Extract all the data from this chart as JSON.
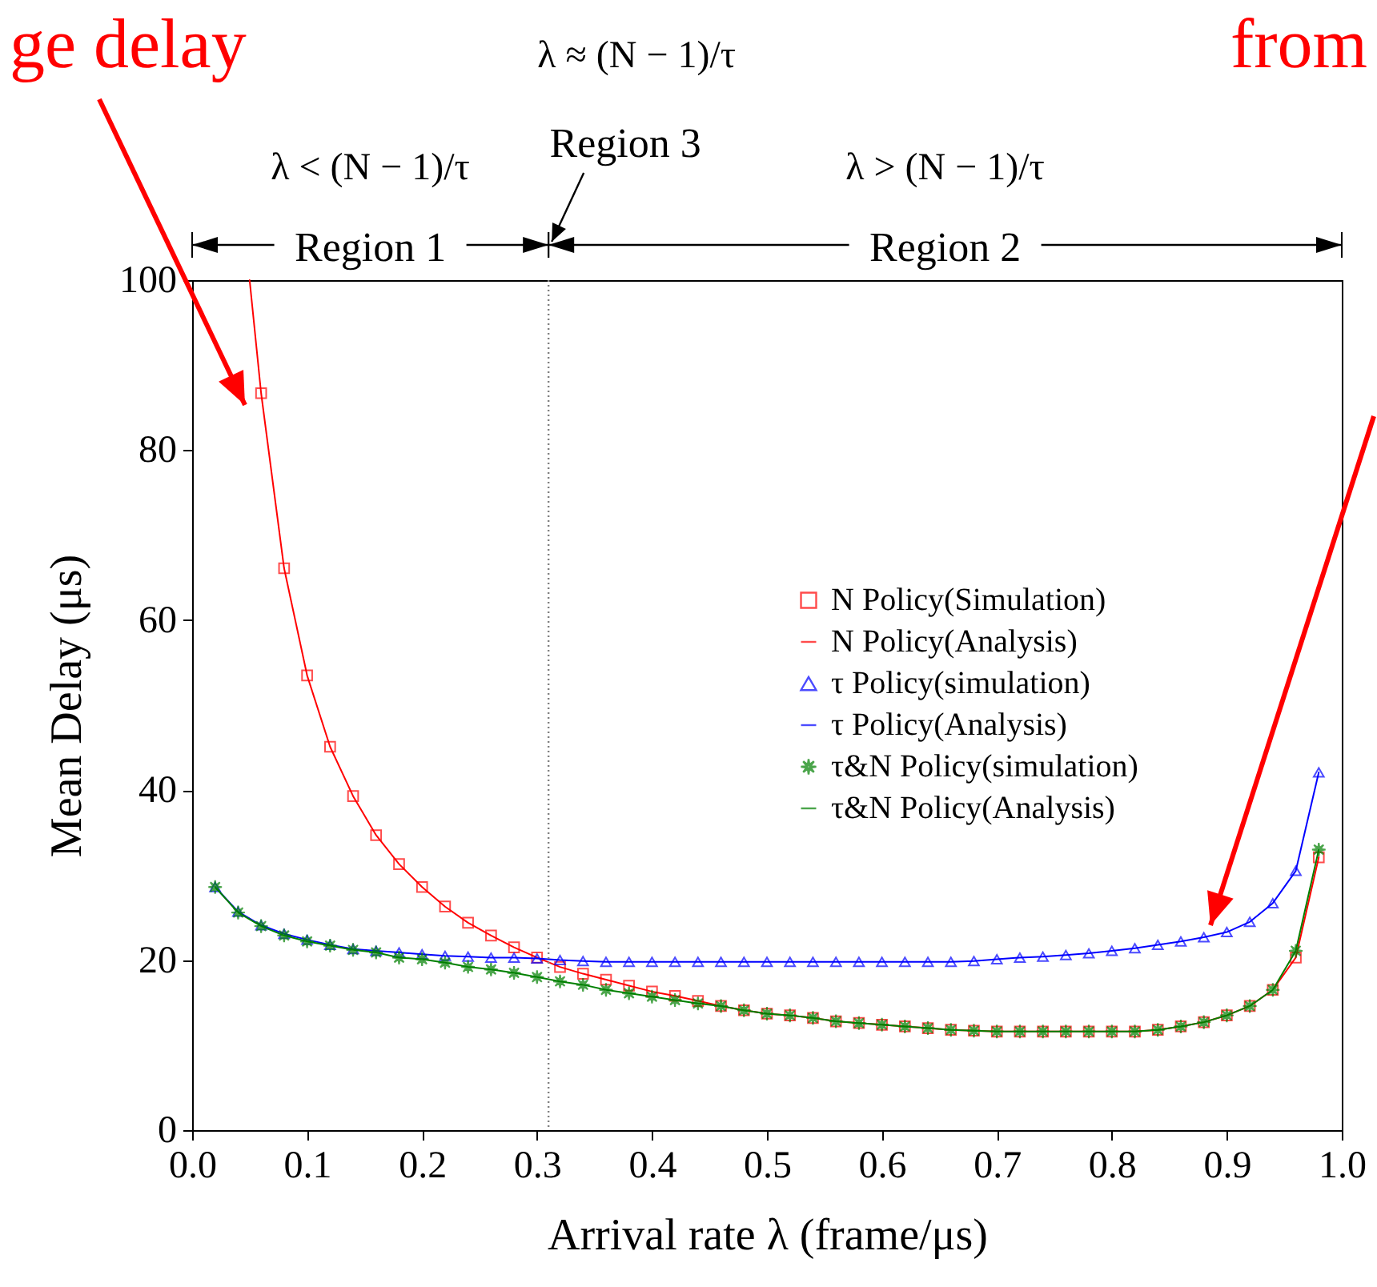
{
  "chart_data": {
    "type": "scatter",
    "xlabel": "Arrival rate λ (frame/μs)",
    "ylabel": "Mean Delay (μs)",
    "xlim": [
      0,
      1.0
    ],
    "ylim": [
      0,
      100
    ],
    "xticks": [
      {
        "value": 0,
        "label": "0.0"
      },
      0.1,
      0.2,
      0.3,
      0.4,
      0.5,
      0.6,
      0.7,
      0.8,
      0.9,
      {
        "value": 1,
        "label": "1.0"
      }
    ],
    "yticks": [
      0,
      20,
      40,
      60,
      80,
      100
    ],
    "grid": false,
    "legend": "right",
    "x": [
      0.02,
      0.04,
      0.06,
      0.08,
      0.1,
      0.12,
      0.14,
      0.16,
      0.18,
      0.2,
      0.22,
      0.24,
      0.26,
      0.28,
      0.3,
      0.32,
      0.34,
      0.36,
      0.38,
      0.4,
      0.42,
      0.44,
      0.46,
      0.48,
      0.5,
      0.52,
      0.54,
      0.56,
      0.58,
      0.6,
      0.62,
      0.64,
      0.66,
      0.68,
      0.7,
      0.72,
      0.74,
      0.76,
      0.78,
      0.8,
      0.82,
      0.84,
      0.86,
      0.88,
      0.9,
      0.92,
      0.94,
      0.96,
      0.98
    ],
    "series": [
      {
        "name": "N Policy(Simulation)",
        "type": "scatter",
        "marker": "square",
        "color": "#ff0000",
        "x": [
          0.06,
          0.08,
          0.1,
          0.12,
          0.14,
          0.16,
          0.18,
          0.2,
          0.22,
          0.24,
          0.26,
          0.28,
          0.3,
          0.32,
          0.34,
          0.36,
          0.38,
          0.4,
          0.42,
          0.44,
          0.46,
          0.48,
          0.5,
          0.52,
          0.54,
          0.56,
          0.58,
          0.6,
          0.62,
          0.64,
          0.66,
          0.68,
          0.7,
          0.72,
          0.74,
          0.76,
          0.78,
          0.8,
          0.82,
          0.84,
          0.86,
          0.88,
          0.9,
          0.92,
          0.94,
          0.96,
          0.98
        ],
        "values": [
          86.7,
          66.1,
          53.5,
          45.1,
          39.3,
          34.7,
          31.3,
          28.6,
          26.3,
          24.4,
          22.9,
          21.5,
          20.3,
          19.2,
          18.4,
          17.7,
          17.0,
          16.3,
          15.8,
          15.2,
          14.6,
          14.1,
          13.7,
          13.5,
          13.2,
          12.8,
          12.6,
          12.4,
          12.2,
          12.0,
          11.8,
          11.7,
          11.6,
          11.6,
          11.6,
          11.6,
          11.6,
          11.6,
          11.6,
          11.8,
          12.2,
          12.7,
          13.5,
          14.6,
          16.5,
          20.3,
          32.1
        ]
      },
      {
        "name": "N Policy(Analysis)",
        "type": "line",
        "marker": "none",
        "line_style": "solid",
        "color": "#ff0000",
        "x": [
          0.05,
          0.06,
          0.08,
          0.1,
          0.12,
          0.14,
          0.16,
          0.18,
          0.2,
          0.22,
          0.24,
          0.26,
          0.28,
          0.3,
          0.32,
          0.34,
          0.36,
          0.38,
          0.4,
          0.42,
          0.44,
          0.46,
          0.48,
          0.5,
          0.52,
          0.54,
          0.56,
          0.58,
          0.6,
          0.62,
          0.64,
          0.66,
          0.68,
          0.7,
          0.72,
          0.74,
          0.76,
          0.78,
          0.8,
          0.82,
          0.84,
          0.86,
          0.88,
          0.9,
          0.92,
          0.94,
          0.96,
          0.98
        ],
        "values": [
          100,
          86.7,
          66.1,
          53.5,
          45.1,
          39.3,
          34.7,
          31.3,
          28.6,
          26.3,
          24.4,
          22.9,
          21.5,
          20.3,
          19.2,
          18.4,
          17.7,
          17.0,
          16.3,
          15.8,
          15.2,
          14.6,
          14.1,
          13.7,
          13.5,
          13.2,
          12.8,
          12.6,
          12.4,
          12.2,
          12.0,
          11.8,
          11.7,
          11.6,
          11.6,
          11.6,
          11.6,
          11.6,
          11.6,
          11.6,
          11.8,
          12.2,
          12.7,
          13.5,
          14.6,
          16.5,
          20.3,
          32.1
        ]
      },
      {
        "name": "τ Policy(simulation)",
        "type": "scatter",
        "marker": "triangle",
        "color": "#0000ff",
        "values": [
          28.6,
          25.7,
          24.1,
          23.1,
          22.4,
          21.8,
          21.3,
          21.1,
          20.9,
          20.7,
          20.5,
          20.4,
          20.3,
          20.3,
          20.2,
          20.0,
          19.9,
          19.8,
          19.8,
          19.8,
          19.8,
          19.8,
          19.8,
          19.8,
          19.8,
          19.8,
          19.8,
          19.8,
          19.8,
          19.8,
          19.8,
          19.8,
          19.8,
          19.9,
          20.1,
          20.3,
          20.4,
          20.6,
          20.8,
          21.1,
          21.4,
          21.8,
          22.2,
          22.7,
          23.3,
          24.5,
          26.7,
          30.5,
          42.1
        ]
      },
      {
        "name": "τ Policy(Analysis)",
        "type": "line",
        "marker": "none",
        "line_style": "solid",
        "color": "#0000ff",
        "values": [
          28.6,
          25.7,
          24.1,
          23.1,
          22.4,
          21.8,
          21.3,
          21.1,
          20.9,
          20.7,
          20.5,
          20.4,
          20.3,
          20.3,
          20.2,
          20.0,
          19.9,
          19.8,
          19.8,
          19.8,
          19.8,
          19.8,
          19.8,
          19.8,
          19.8,
          19.8,
          19.8,
          19.8,
          19.8,
          19.8,
          19.8,
          19.8,
          19.8,
          19.9,
          20.1,
          20.3,
          20.4,
          20.6,
          20.8,
          21.1,
          21.4,
          21.8,
          22.2,
          22.7,
          23.3,
          24.5,
          26.7,
          30.5,
          42.1
        ]
      },
      {
        "name": "τ&N Policy(simulation)",
        "type": "scatter",
        "marker": "star",
        "color": "#008000",
        "values": [
          28.6,
          25.6,
          24.0,
          22.9,
          22.2,
          21.7,
          21.2,
          20.9,
          20.3,
          20.1,
          19.7,
          19.2,
          18.9,
          18.5,
          18.0,
          17.5,
          17.1,
          16.5,
          16.1,
          15.7,
          15.3,
          14.9,
          14.6,
          14.1,
          13.7,
          13.5,
          13.2,
          12.8,
          12.6,
          12.4,
          12.2,
          12.0,
          11.8,
          11.7,
          11.6,
          11.6,
          11.6,
          11.6,
          11.6,
          11.6,
          11.6,
          11.8,
          12.2,
          12.7,
          13.5,
          14.6,
          16.5,
          21.1,
          33.0
        ]
      },
      {
        "name": "τ&N Policy(Analysis)",
        "type": "line",
        "marker": "none",
        "line_style": "solid",
        "color": "#008000",
        "values": [
          28.6,
          25.6,
          24.0,
          22.9,
          22.2,
          21.7,
          21.2,
          20.9,
          20.3,
          20.1,
          19.7,
          19.2,
          18.9,
          18.5,
          18.0,
          17.5,
          17.1,
          16.5,
          16.1,
          15.7,
          15.3,
          14.9,
          14.6,
          14.1,
          13.7,
          13.5,
          13.2,
          12.8,
          12.6,
          12.4,
          12.2,
          12.0,
          11.8,
          11.7,
          11.6,
          11.6,
          11.6,
          11.6,
          11.6,
          11.6,
          11.6,
          11.8,
          12.2,
          12.7,
          13.5,
          14.6,
          16.5,
          21.1,
          33.0
        ]
      }
    ],
    "ref_lines": [
      {
        "axis": "x",
        "value": 0.31,
        "color": "#808080",
        "line_style": "dotted"
      }
    ],
    "annotations": [
      "ge delay",
      "from",
      "λ < (N − 1)/τ",
      "Region 1",
      "λ ≈ (N − 1)/τ",
      "Region 3",
      "λ > (N − 1)/τ",
      "Region 2"
    ]
  }
}
